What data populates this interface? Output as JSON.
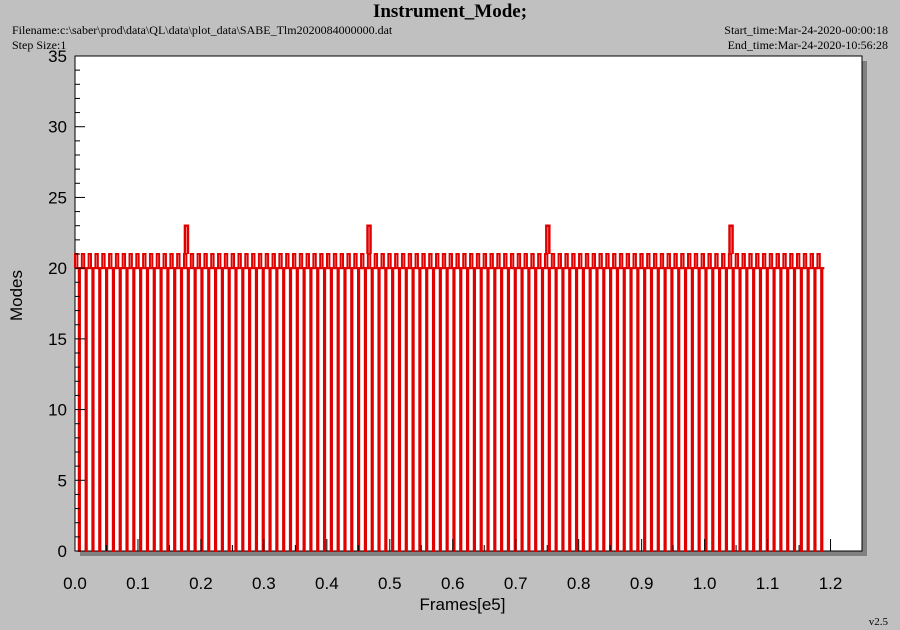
{
  "header": {
    "title": "Instrument_Mode;",
    "filename": "Filename:c:\\saber\\prod\\data\\QL\\data\\plot_data\\SABE_Tlm2020084000000.dat",
    "step_size": "Step Size:1",
    "start_time": "Start_time:Mar-24-2020-00:00:18",
    "end_time": "End_time:Mar-24-2020-10:56:28",
    "version": "v2.5"
  },
  "colors": {
    "series": "#e00000",
    "plot_background": "#ffffff",
    "page_background": "#c0c0c0",
    "shadow": "#808080"
  },
  "chart_data": {
    "type": "line",
    "title": "Instrument_Mode;",
    "xlabel": "Frames[e5]",
    "ylabel": "Modes",
    "xlim": [
      0.0,
      1.25
    ],
    "ylim": [
      0,
      35
    ],
    "x_ticks": [
      "0.0",
      "0.1",
      "0.2",
      "0.3",
      "0.4",
      "0.5",
      "0.6",
      "0.7",
      "0.8",
      "0.9",
      "1.0",
      "1.1",
      "1.2"
    ],
    "y_ticks": [
      "0",
      "5",
      "10",
      "15",
      "20",
      "25",
      "30",
      "35"
    ],
    "grid": false,
    "series": [
      {
        "x_range": [
          0.0,
          1.19
        ],
        "baseline": 20,
        "high_mode": 21,
        "low_mode": 0,
        "cycle_count": 110,
        "peaks": [
          {
            "x": 0.177,
            "value": 23
          },
          {
            "x": 0.467,
            "value": 23
          },
          {
            "x": 0.751,
            "value": 23
          },
          {
            "x": 1.042,
            "value": 23
          }
        ]
      }
    ]
  }
}
